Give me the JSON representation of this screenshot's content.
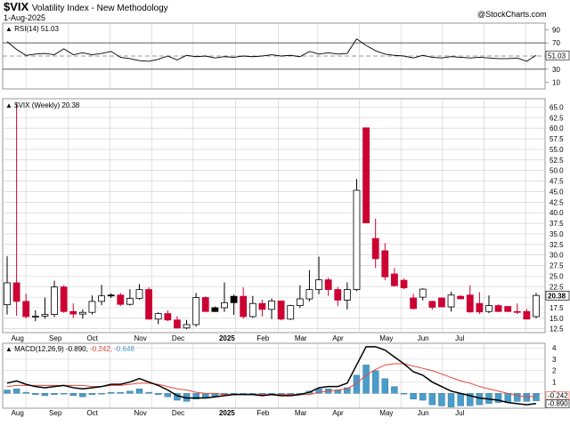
{
  "header": {
    "symbol": "$VIX",
    "name": "Volatility Index - New Methodology",
    "date": "1-Aug-2025",
    "credit": "@StockCharts.com"
  },
  "colors": {
    "up": "#ffffff",
    "down": "#cc0033",
    "wick": "#000000",
    "macd_line": "#000000",
    "signal_line": "#e8473a",
    "histogram": "#4a9cc9",
    "grid": "#cccccc"
  },
  "chart_data": [
    {
      "type": "line",
      "panel": "RSI",
      "legend": "RSI(14) 51.03",
      "value_label": "51.03",
      "ylim": [
        0,
        100
      ],
      "yticks": [
        10,
        30,
        50,
        70,
        90
      ],
      "reference_lines": [
        30,
        50,
        70
      ],
      "values": [
        72,
        60,
        51,
        53,
        54,
        52,
        61,
        52,
        55,
        52,
        54,
        57,
        48,
        46,
        43,
        42,
        45,
        50,
        44,
        51,
        49,
        50,
        47,
        49,
        48,
        50,
        49,
        50,
        52,
        50,
        51,
        49,
        57,
        53,
        55,
        53,
        54,
        76,
        66,
        58,
        53,
        51,
        50,
        47,
        51,
        48,
        47,
        49,
        48,
        47,
        48,
        47,
        46,
        46,
        47,
        42,
        51
      ]
    },
    {
      "type": "candlestick",
      "panel": "Price",
      "legend": "$VIX (Weekly) 20.38",
      "value_label": "20.38",
      "ylim": [
        11.6,
        67
      ],
      "yticks": [
        12.5,
        15.0,
        17.5,
        20.0,
        22.5,
        25.0,
        27.5,
        30.0,
        32.5,
        35.0,
        37.5,
        40.0,
        42.5,
        45.0,
        47.5,
        50.0,
        52.5,
        55.0,
        57.5,
        60.0,
        62.5,
        65.0
      ],
      "x_labels": [
        "Aug",
        "Sep",
        "Oct",
        "Nov",
        "Dec",
        "2025",
        "Feb",
        "Mar",
        "Apr",
        "May",
        "Jun",
        "Jul"
      ],
      "candles": [
        {
          "o": 18.2,
          "h": 29.7,
          "l": 15.9,
          "c": 23.4
        },
        {
          "o": 23.4,
          "h": 65.7,
          "l": 15.6,
          "c": 19.0
        },
        {
          "o": 19.0,
          "h": 20.8,
          "l": 15.0,
          "c": 15.4
        },
        {
          "o": 15.4,
          "h": 16.9,
          "l": 14.3,
          "c": 15.5
        },
        {
          "o": 15.5,
          "h": 19.9,
          "l": 14.9,
          "c": 15.9
        },
        {
          "o": 15.9,
          "h": 23.9,
          "l": 15.3,
          "c": 22.4
        },
        {
          "o": 22.4,
          "h": 22.8,
          "l": 16.3,
          "c": 16.6
        },
        {
          "o": 16.6,
          "h": 18.5,
          "l": 15.1,
          "c": 16.0
        },
        {
          "o": 16.0,
          "h": 17.1,
          "l": 14.9,
          "c": 16.4
        },
        {
          "o": 16.4,
          "h": 20.4,
          "l": 15.9,
          "c": 19.0
        },
        {
          "o": 19.0,
          "h": 22.9,
          "l": 18.1,
          "c": 20.3
        },
        {
          "o": 20.3,
          "h": 20.9,
          "l": 19.8,
          "c": 20.5
        },
        {
          "o": 20.5,
          "h": 21.0,
          "l": 17.9,
          "c": 18.3
        },
        {
          "o": 18.3,
          "h": 21.9,
          "l": 18.0,
          "c": 19.7
        },
        {
          "o": 19.7,
          "h": 23.1,
          "l": 19.4,
          "c": 21.8
        },
        {
          "o": 21.8,
          "h": 22.3,
          "l": 14.7,
          "c": 14.8
        },
        {
          "o": 14.8,
          "h": 16.4,
          "l": 13.6,
          "c": 16.1
        },
        {
          "o": 16.1,
          "h": 16.9,
          "l": 14.3,
          "c": 14.6
        },
        {
          "o": 14.6,
          "h": 15.5,
          "l": 12.6,
          "c": 12.7
        },
        {
          "o": 12.7,
          "h": 14.6,
          "l": 12.4,
          "c": 13.5
        },
        {
          "o": 13.5,
          "h": 21.0,
          "l": 13.0,
          "c": 19.9
        },
        {
          "o": 19.9,
          "h": 20.2,
          "l": 16.6,
          "c": 16.6
        },
        {
          "o": 16.6,
          "h": 17.8,
          "l": 16.5,
          "c": 17.5
        },
        {
          "o": 17.5,
          "h": 23.5,
          "l": 16.5,
          "c": 18.7
        },
        {
          "o": 18.7,
          "h": 20.6,
          "l": 15.8,
          "c": 20.2
        },
        {
          "o": 20.2,
          "h": 22.3,
          "l": 14.9,
          "c": 15.4
        },
        {
          "o": 15.4,
          "h": 20.3,
          "l": 15.1,
          "c": 18.5
        },
        {
          "o": 18.5,
          "h": 19.4,
          "l": 15.4,
          "c": 17.1
        },
        {
          "o": 17.1,
          "h": 19.7,
          "l": 14.8,
          "c": 19.1
        },
        {
          "o": 19.1,
          "h": 19.2,
          "l": 14.5,
          "c": 14.8
        },
        {
          "o": 14.8,
          "h": 18.2,
          "l": 14.6,
          "c": 18.0
        },
        {
          "o": 18.0,
          "h": 22.8,
          "l": 17.4,
          "c": 19.6
        },
        {
          "o": 19.6,
          "h": 26.4,
          "l": 19.0,
          "c": 21.8
        },
        {
          "o": 21.8,
          "h": 29.6,
          "l": 20.7,
          "c": 24.1
        },
        {
          "o": 24.1,
          "h": 24.6,
          "l": 20.3,
          "c": 21.8
        },
        {
          "o": 21.8,
          "h": 22.4,
          "l": 17.9,
          "c": 19.3
        },
        {
          "o": 19.3,
          "h": 23.5,
          "l": 17.1,
          "c": 21.8
        },
        {
          "o": 21.8,
          "h": 48.0,
          "l": 21.4,
          "c": 45.3
        },
        {
          "o": 60.1,
          "h": 60.1,
          "l": 37.9,
          "c": 37.6
        },
        {
          "o": 33.9,
          "h": 38.6,
          "l": 26.9,
          "c": 29.1
        },
        {
          "o": 31.0,
          "h": 32.8,
          "l": 24.0,
          "c": 24.8
        },
        {
          "o": 25.5,
          "h": 26.9,
          "l": 22.5,
          "c": 22.7
        },
        {
          "o": 24.0,
          "h": 24.4,
          "l": 21.9,
          "c": 22.2
        },
        {
          "o": 19.8,
          "h": 20.8,
          "l": 17.1,
          "c": 17.3
        },
        {
          "o": 20.0,
          "h": 22.1,
          "l": 19.2,
          "c": 21.9
        },
        {
          "o": 19.0,
          "h": 19.1,
          "l": 17.0,
          "c": 17.6
        },
        {
          "o": 19.8,
          "h": 19.9,
          "l": 17.7,
          "c": 17.7
        },
        {
          "o": 17.7,
          "h": 21.3,
          "l": 16.6,
          "c": 20.5
        },
        {
          "o": 20.2,
          "h": 20.5,
          "l": 19.5,
          "c": 19.6
        },
        {
          "o": 20.5,
          "h": 22.8,
          "l": 16.3,
          "c": 16.5
        },
        {
          "o": 18.5,
          "h": 21.2,
          "l": 16.0,
          "c": 16.5
        },
        {
          "o": 16.6,
          "h": 20.4,
          "l": 16.2,
          "c": 18.0
        },
        {
          "o": 18.0,
          "h": 18.3,
          "l": 16.5,
          "c": 16.6
        },
        {
          "o": 17.8,
          "h": 17.9,
          "l": 16.5,
          "c": 16.6
        },
        {
          "o": 16.6,
          "h": 18.5,
          "l": 16.0,
          "c": 16.4
        },
        {
          "o": 16.6,
          "h": 17.2,
          "l": 14.8,
          "c": 14.8
        },
        {
          "o": 15.4,
          "h": 21.0,
          "l": 15.0,
          "c": 20.4
        }
      ]
    },
    {
      "type": "line",
      "panel": "MACD",
      "legend_prefix": "MACD(12,26,9)",
      "legend_values": [
        "-0.890",
        "-0.242",
        "-0.648"
      ],
      "value_labels": [
        "-0.242",
        "-0.890"
      ],
      "ylim": [
        -1.3,
        4.4
      ],
      "yticks": [
        0,
        1,
        2,
        3,
        4
      ],
      "series": [
        {
          "name": "MACD",
          "values": [
            0.9,
            1.1,
            0.8,
            0.6,
            0.5,
            0.6,
            0.7,
            0.5,
            0.4,
            0.5,
            0.6,
            0.8,
            0.8,
            1.0,
            1.3,
            1.0,
            0.7,
            0.3,
            -0.2,
            -0.4,
            -0.4,
            -0.4,
            -0.3,
            -0.2,
            -0.1,
            -0.1,
            -0.1,
            -0.2,
            -0.1,
            -0.2,
            -0.2,
            -0.1,
            0.1,
            0.5,
            0.6,
            0.6,
            0.9,
            2.5,
            4.1,
            4.1,
            3.8,
            3.2,
            2.6,
            1.9,
            1.6,
            1.0,
            0.6,
            0.2,
            0.0,
            -0.2,
            -0.4,
            -0.5,
            -0.6,
            -0.8,
            -0.9,
            -1.0,
            -0.89
          ]
        },
        {
          "name": "Signal",
          "values": [
            0.6,
            0.7,
            0.7,
            0.7,
            0.7,
            0.7,
            0.7,
            0.7,
            0.7,
            0.6,
            0.6,
            0.7,
            0.7,
            0.8,
            0.9,
            0.9,
            0.8,
            0.6,
            0.4,
            0.3,
            0.1,
            0.0,
            0.0,
            -0.1,
            -0.1,
            -0.1,
            -0.1,
            -0.1,
            -0.1,
            -0.1,
            -0.1,
            -0.1,
            -0.1,
            0.1,
            0.2,
            0.3,
            0.4,
            0.9,
            1.6,
            2.1,
            2.5,
            2.6,
            2.6,
            2.4,
            2.2,
            2.0,
            1.7,
            1.4,
            1.1,
            0.9,
            0.6,
            0.4,
            0.2,
            0.0,
            -0.2,
            -0.3,
            -0.242
          ]
        },
        {
          "name": "Histogram",
          "values": [
            0.3,
            0.4,
            0.1,
            -0.1,
            -0.2,
            -0.1,
            0.0,
            -0.2,
            -0.3,
            -0.1,
            0.0,
            0.1,
            0.1,
            0.2,
            0.4,
            0.1,
            -0.1,
            -0.3,
            -0.6,
            -0.7,
            -0.5,
            -0.4,
            -0.3,
            -0.1,
            0.0,
            0.0,
            0.0,
            -0.1,
            0.0,
            -0.1,
            -0.1,
            0.0,
            0.2,
            0.4,
            0.4,
            0.3,
            0.5,
            1.6,
            2.5,
            2.0,
            1.3,
            0.6,
            0.0,
            -0.5,
            -0.6,
            -1.0,
            -1.1,
            -1.2,
            -1.1,
            -1.1,
            -1.0,
            -0.9,
            -0.8,
            -0.8,
            -0.7,
            -0.7,
            -0.648
          ]
        }
      ]
    }
  ]
}
